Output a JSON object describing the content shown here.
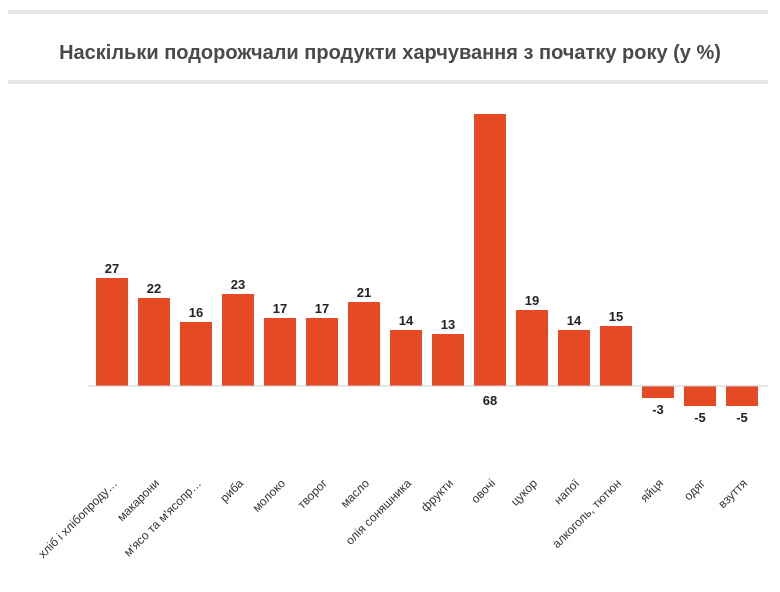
{
  "chart_data": {
    "type": "bar",
    "title": "Наскільки подорожчали продукти харчування з початку року (у %)",
    "categories": [
      "хліб і хлібопроду…",
      "макарони",
      "м'ясо та м'ясопр…",
      "риба",
      "молоко",
      "творог",
      "масло",
      "олія соняшника",
      "фрукти",
      "овочі",
      "цукор",
      "напої",
      "алкоголь, тютюн",
      "яйця",
      "одяг",
      "взуття"
    ],
    "values": [
      27,
      22,
      16,
      23,
      17,
      17,
      21,
      14,
      13,
      68,
      19,
      14,
      15,
      -3,
      -5,
      -5
    ],
    "colors": {
      "bar": "#e64a25",
      "axis": "#cccccc"
    },
    "grid": false,
    "legend": "none",
    "xlabel": "",
    "ylabel": ""
  }
}
